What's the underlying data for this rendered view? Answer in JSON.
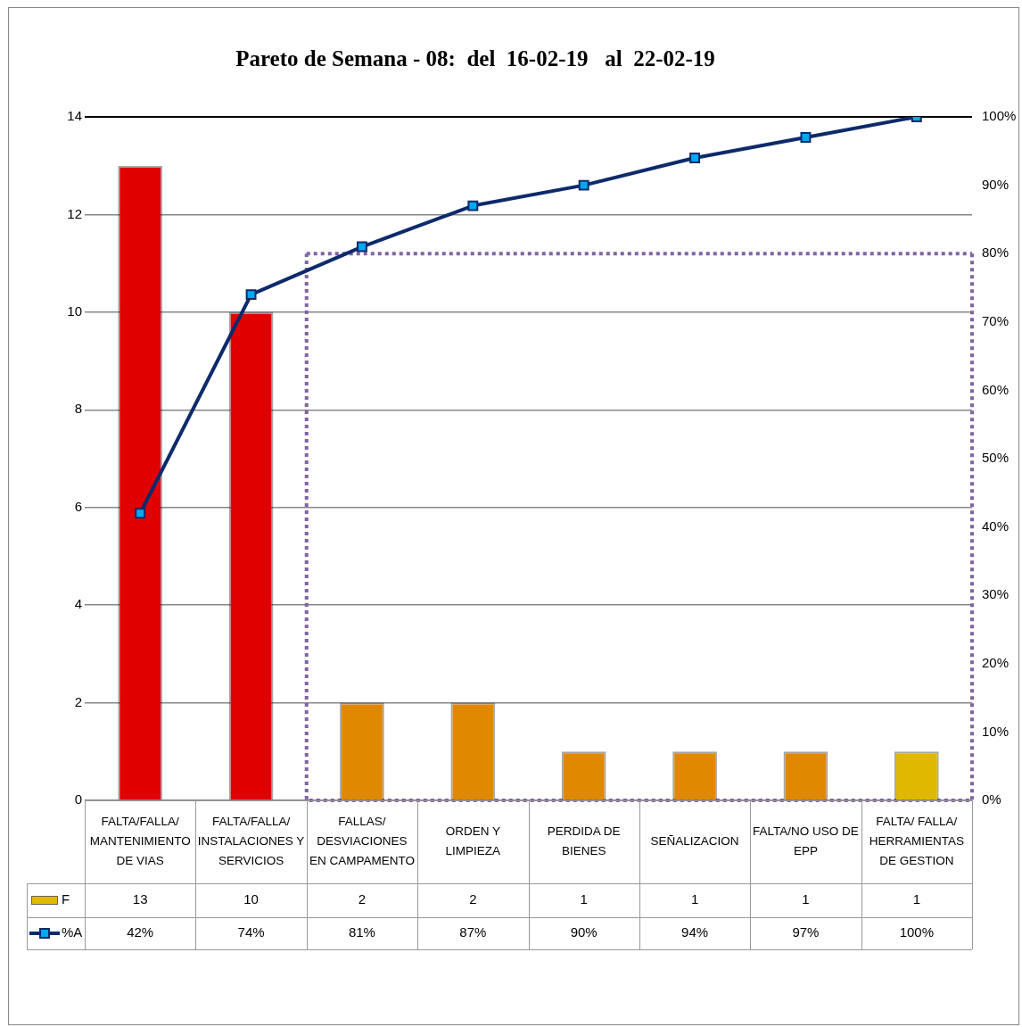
{
  "chart_data": {
    "type": "bar",
    "title": "Pareto de Semana - 08:  del  16-02-19   al  22-02-19",
    "categories": [
      "FALTA/FALLA/ MANTENIMIENTO DE VIAS",
      "FALTA/FALLA/ INSTALACIONES Y SERVICIOS",
      "FALLAS/ DESVIACIONES EN CAMPAMENTO",
      "ORDEN Y LIMPIEZA",
      "PERDIDA DE BIENES",
      "SEÑALIZACION",
      "FALTA/NO USO DE EPP",
      "FALTA/ FALLA/ HERRAMIENTAS DE GESTION"
    ],
    "series": [
      {
        "name": "F",
        "color": "#e0b800",
        "colors": [
          "#e00000",
          "#e00000",
          "#e08800",
          "#e08800",
          "#e08800",
          "#e08800",
          "#e08800",
          "#e0b800"
        ],
        "values": [
          13,
          10,
          2,
          2,
          1,
          1,
          1,
          1
        ],
        "value_labels": [
          "13",
          "10",
          "2",
          "2",
          "1",
          "1",
          "1",
          "1"
        ]
      },
      {
        "name": "%A",
        "type": "line",
        "axis": "y2",
        "color": "#0d2a6b",
        "marker": "square",
        "values": [
          42,
          74,
          81,
          87,
          90,
          94,
          97,
          100
        ],
        "value_labels": [
          "42%",
          "74%",
          "81%",
          "87%",
          "90%",
          "94%",
          "97%",
          "100%"
        ]
      }
    ],
    "ylim": [
      0,
      14
    ],
    "yticks": [
      0,
      2,
      4,
      6,
      8,
      10,
      12,
      14
    ],
    "y2lim": [
      0,
      100
    ],
    "y2ticks": [
      {
        "value": 0,
        "label": "0%"
      },
      {
        "value": 10,
        "label": "10%"
      },
      {
        "value": 20,
        "label": "20%"
      },
      {
        "value": 30,
        "label": "30%"
      },
      {
        "value": 40,
        "label": "40%"
      },
      {
        "value": 50,
        "label": "50%"
      },
      {
        "value": 60,
        "label": "60%"
      },
      {
        "value": 70,
        "label": "70%"
      },
      {
        "value": 80,
        "label": "80%"
      },
      {
        "value": 90,
        "label": "90%"
      },
      {
        "value": 100,
        "label": "100%"
      }
    ],
    "ref_lines": [
      {
        "axis": "y2",
        "value": 80,
        "color": "#8064a2",
        "line_style": "dotted"
      }
    ],
    "grid": "y",
    "legend": "bottom"
  }
}
